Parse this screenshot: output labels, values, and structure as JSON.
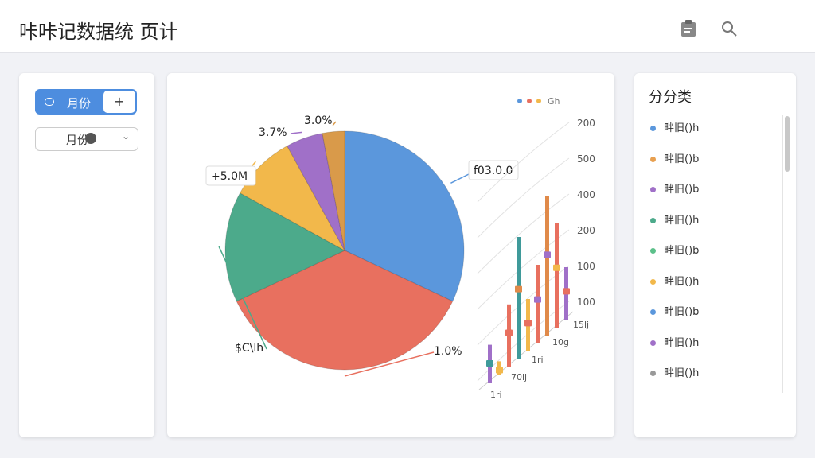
{
  "header": {
    "title": "咔咔记数据统 页计"
  },
  "sidebar": {
    "toggle_label": "月份",
    "add_button": "+",
    "select_label": "月份"
  },
  "chart_data": {
    "type": "pie",
    "categories": [
      "f03.0.0",
      "1.0%",
      "$C\\lh",
      "+5.0M",
      "3.7%",
      "3.0%"
    ],
    "values": [
      32,
      36,
      15,
      9,
      5,
      3
    ],
    "colors": [
      "#5b97dc",
      "#e8705f",
      "#4caa8b",
      "#f2b84b",
      "#a070c8",
      "#d99a4a"
    ],
    "legend": "Gh",
    "bar_chart": {
      "y_labels": [
        "200",
        "500",
        "400",
        "200",
        "100",
        "100"
      ],
      "x_labels": [
        "15lj",
        "10g",
        "1ri",
        "70lj",
        "1ri"
      ],
      "values": [
        22,
        8,
        36,
        70,
        30,
        45,
        80,
        60,
        30
      ],
      "colors": [
        "#a070c8",
        "#f2b84b",
        "#e8705f",
        "#3f9a9a",
        "#f2b84b",
        "#e8705f",
        "#e08a4a",
        "#e8705f",
        "#a070c8"
      ]
    }
  },
  "right_panel": {
    "title": "分分类",
    "items": [
      {
        "label": "畔旧()h",
        "color": "#5b97dc"
      },
      {
        "label": "畔旧()b",
        "color": "#e8a050"
      },
      {
        "label": "畔旧()b",
        "color": "#a070c8"
      },
      {
        "label": "畔旧()h",
        "color": "#4caa8b"
      },
      {
        "label": "畔旧()b",
        "color": "#5cc08a"
      },
      {
        "label": "畔旧()h",
        "color": "#f2b84b"
      },
      {
        "label": "畔旧()b",
        "color": "#5b97dc"
      },
      {
        "label": "畔旧()h",
        "color": "#a070c8"
      },
      {
        "label": "畔旧()h",
        "color": "#999999"
      }
    ]
  }
}
